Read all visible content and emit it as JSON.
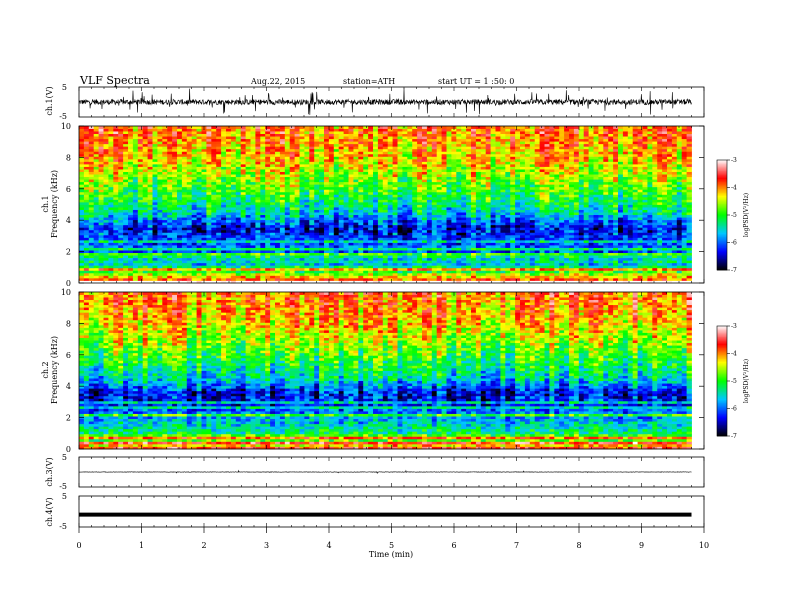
{
  "header": {
    "title": "VLF  Spectra",
    "date": "Aug.22, 2015",
    "station": "station=ATH",
    "start": "start  UT  =    1  :50: 0"
  },
  "chart_data": {
    "type": "heatmap",
    "title": "VLF  Spectra",
    "xlabel": "Time  (min)",
    "xlim": [
      0,
      10
    ],
    "xticks": [
      0,
      1,
      2,
      3,
      4,
      5,
      6,
      7,
      8,
      9,
      10
    ],
    "panels": [
      {
        "id": "ch1-wave",
        "kind": "waveform",
        "ylabel": "ch.1(V)",
        "yticks": [
          "5",
          "-5"
        ],
        "ylim": [
          -5,
          5
        ],
        "level": 0,
        "noise": "high"
      },
      {
        "id": "ch1-spec",
        "kind": "spectrogram",
        "ylabel": "ch.1\nFrequency  (kHz)",
        "yticks": [
          0,
          2,
          4,
          6,
          8,
          10
        ],
        "ylim": [
          0,
          10
        ]
      },
      {
        "id": "ch2-spec",
        "kind": "spectrogram",
        "ylabel": "ch.2\nFrequency  (kHz)",
        "yticks": [
          0,
          2,
          4,
          6,
          8,
          10
        ],
        "ylim": [
          0,
          10
        ]
      },
      {
        "id": "ch3-wave",
        "kind": "waveform",
        "ylabel": "ch.3(V)",
        "yticks": [
          "5",
          "-5"
        ],
        "ylim": [
          -5,
          5
        ],
        "level": 0,
        "noise": "low"
      },
      {
        "id": "ch4-wave",
        "kind": "waveform",
        "ylabel": "ch.4(V)",
        "yticks": [
          "5",
          "-5"
        ],
        "ylim": [
          -5,
          5
        ],
        "level": -1,
        "noise": "flat"
      }
    ],
    "colorbar": {
      "label": "logPSD(V²/Hz)",
      "range": [
        -7,
        -3
      ],
      "ticks": [
        "-3",
        "-4",
        "-5",
        "-6",
        "-7"
      ],
      "colors": [
        "#000000",
        "#0000ff",
        "#00c8ff",
        "#00ff00",
        "#ffff00",
        "#ff0000",
        "#ffffff"
      ]
    },
    "spectrum_profile": [
      {
        "f": 0,
        "v": -3.5
      },
      {
        "f": 0.5,
        "v": -4.4
      },
      {
        "f": 1,
        "v": -5.2
      },
      {
        "f": 2,
        "v": -5.8
      },
      {
        "f": 3,
        "v": -6.2
      },
      {
        "f": 3.5,
        "v": -6.4
      },
      {
        "f": 4.5,
        "v": -5.5
      },
      {
        "f": 6,
        "v": -4.9
      },
      {
        "f": 8,
        "v": -4.2
      },
      {
        "f": 10,
        "v": -3.9
      }
    ],
    "data_end_min": 9.8
  }
}
